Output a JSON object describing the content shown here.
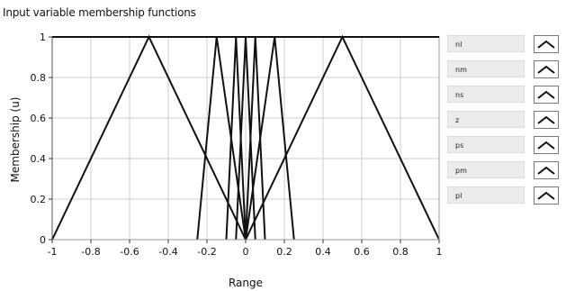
{
  "chart_data": {
    "type": "line",
    "title": "Input variable membership functions",
    "xlabel": "Range",
    "ylabel": "Membership (u)",
    "xlim": [
      -1,
      1
    ],
    "ylim": [
      0,
      1
    ],
    "x_ticks": [
      -1,
      -0.8,
      -0.6,
      -0.4,
      -0.2,
      0,
      0.2,
      0.4,
      0.6,
      0.8,
      1
    ],
    "x_tick_labels": [
      "-1",
      "-0.8",
      "-0.6",
      "-0.4",
      "-0.2",
      "0",
      "0.2",
      "0.4",
      "0.6",
      "0.8",
      "1"
    ],
    "y_ticks": [
      0,
      0.2,
      0.4,
      0.6,
      0.8,
      1
    ],
    "y_tick_labels": [
      "0",
      "0.2",
      "0.4",
      "0.6",
      "0.8",
      "1"
    ],
    "grid": true,
    "legend_position": "right",
    "series": [
      {
        "name": "nl",
        "x": [
          -1,
          -0.5,
          0
        ],
        "y": [
          0,
          1,
          0
        ]
      },
      {
        "name": "nm",
        "x": [
          -0.25,
          -0.15,
          0
        ],
        "y": [
          0,
          1,
          0
        ]
      },
      {
        "name": "ns",
        "x": [
          -0.1,
          -0.05,
          0
        ],
        "y": [
          0,
          1,
          0
        ]
      },
      {
        "name": "z",
        "x": [
          -0.05,
          0,
          0.05
        ],
        "y": [
          0,
          1,
          0
        ]
      },
      {
        "name": "ps",
        "x": [
          0,
          0.05,
          0.1
        ],
        "y": [
          0,
          1,
          0
        ]
      },
      {
        "name": "pm",
        "x": [
          0,
          0.15,
          0.25
        ],
        "y": [
          0,
          1,
          0
        ]
      },
      {
        "name": "pl",
        "x": [
          0,
          0.5,
          1
        ],
        "y": [
          0,
          1,
          0
        ]
      }
    ],
    "line_color": "#111111",
    "grid_color": "#cfcfcf"
  }
}
